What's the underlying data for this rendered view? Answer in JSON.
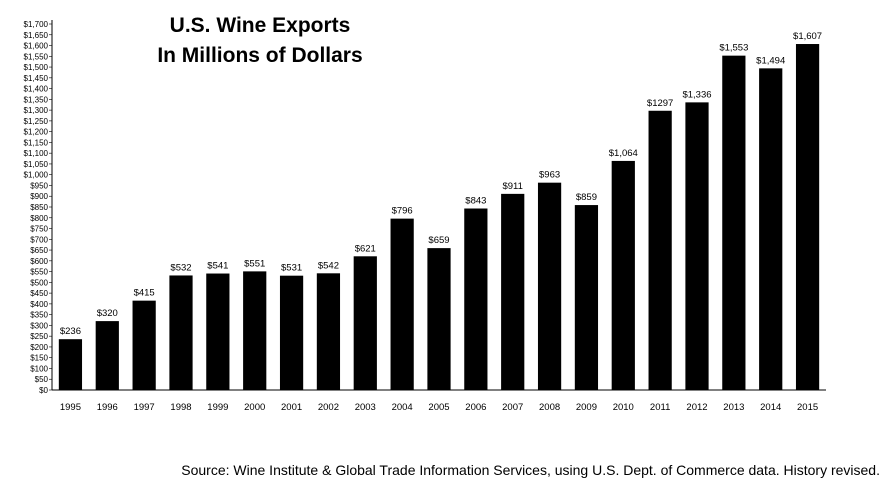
{
  "chart_data": {
    "type": "bar",
    "title": "U.S. Wine Exports",
    "subtitle": "In Millions of Dollars",
    "xlabel": "",
    "ylabel": "",
    "ylim": [
      0,
      1700
    ],
    "ytick_step": 50,
    "grid": false,
    "categories": [
      "1995",
      "1996",
      "1997",
      "1998",
      "1999",
      "2000",
      "2001",
      "2002",
      "2003",
      "2004",
      "2005",
      "2006",
      "2007",
      "2008",
      "2009",
      "2010",
      "2011",
      "2012",
      "2013",
      "2014",
      "2015"
    ],
    "values": [
      236,
      320,
      415,
      532,
      541,
      551,
      531,
      542,
      621,
      796,
      659,
      843,
      911,
      963,
      859,
      1064,
      1297,
      1336,
      1553,
      1494,
      1607
    ],
    "data_labels": [
      "$236",
      "$320",
      "$415",
      "$532",
      "$541",
      "$551",
      "$531",
      "$542",
      "$621",
      "$796",
      "$659",
      "$843",
      "$911",
      "$963",
      "$859",
      "$1,064",
      "$1297",
      "$1,336",
      "$1,553",
      "$1,494",
      "$1,607"
    ],
    "bar_color": "#000000"
  },
  "source": "Source:  Wine Institute & Global Trade Information Services, using U.S. Dept. of Commerce data. History revised."
}
